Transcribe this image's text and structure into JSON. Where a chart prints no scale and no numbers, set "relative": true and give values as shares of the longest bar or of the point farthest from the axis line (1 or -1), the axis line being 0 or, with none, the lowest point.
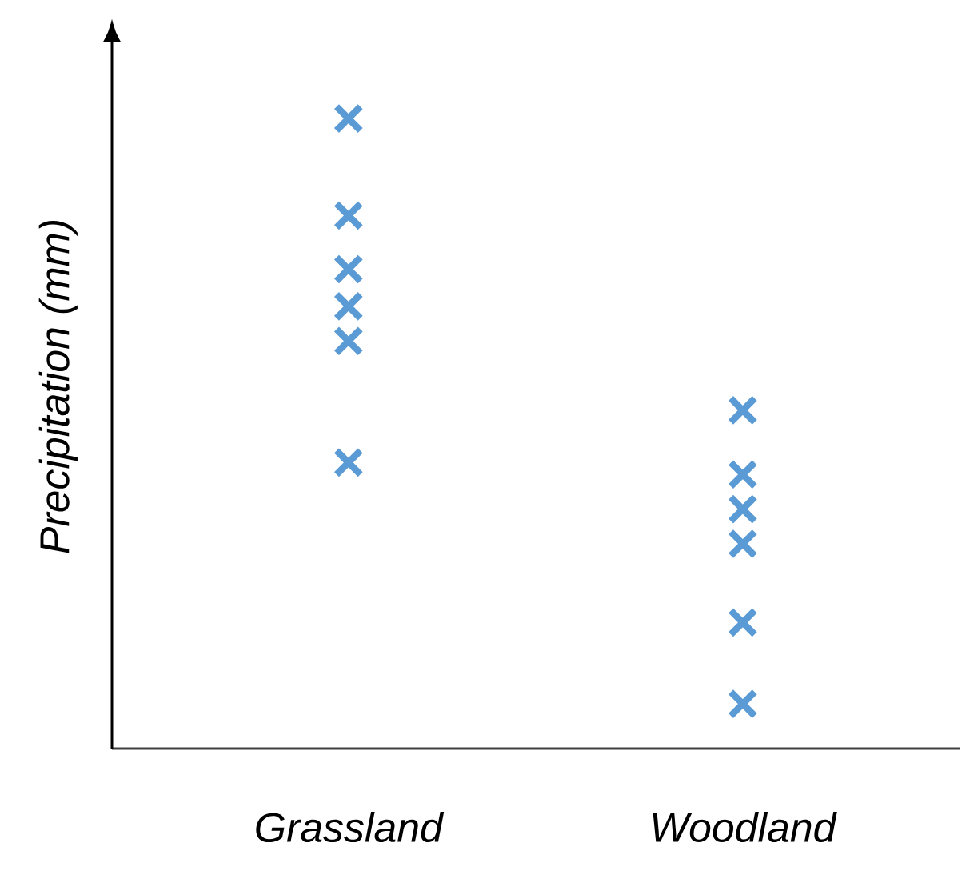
{
  "chart_data": {
    "type": "scatter",
    "ylabel": "Precipitation (mm)",
    "categories": [
      "Grassland",
      "Woodland"
    ],
    "relative": true,
    "tick_labels": "x",
    "marker": "cross",
    "series": [
      {
        "color": "#5b9bd5",
        "x": [
          "Grassland",
          "Grassland",
          "Grassland",
          "Grassland",
          "Grassland",
          "Grassland",
          "Woodland",
          "Woodland",
          "Woodland",
          "Woodland",
          "Woodland",
          "Woodland"
        ],
        "values": [
          1,
          0.846,
          0.761,
          0.702,
          0.647,
          0.454,
          0.537,
          0.435,
          0.38,
          0.325,
          0.2,
          0.071
        ]
      }
    ]
  }
}
